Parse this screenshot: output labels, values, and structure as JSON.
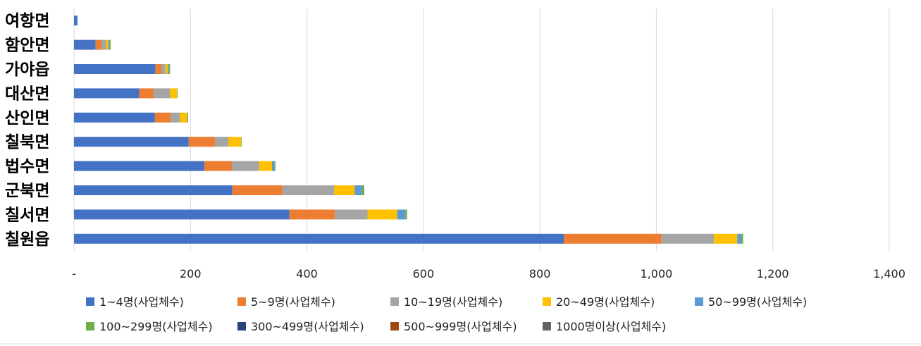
{
  "chart_data": {
    "type": "bar",
    "orientation": "horizontal",
    "stacked": true,
    "grid": true,
    "legend_position": "bottom",
    "categories": [
      "여항면",
      "함안면",
      "가야읍",
      "대산면",
      "산인면",
      "칠북면",
      "법수면",
      "군북면",
      "칠서면",
      "칠원읍"
    ],
    "x_ticks": [
      "-",
      "200",
      "400",
      "600",
      "800",
      "1,000",
      "1,200",
      "1,400"
    ],
    "xlim": [
      0,
      1400
    ],
    "series": [
      {
        "name": "1~4명(사업체수)",
        "color": "#4472C4",
        "values": [
          6,
          37,
          140,
          112,
          139,
          197,
          224,
          272,
          370,
          841
        ]
      },
      {
        "name": "5~9명(사업체수)",
        "color": "#ED7D31",
        "values": [
          0,
          10,
          10,
          25,
          27,
          45,
          47,
          86,
          78,
          168
        ]
      },
      {
        "name": "10~19명(사업체수)",
        "color": "#A5A5A5",
        "values": [
          0,
          8,
          7,
          28,
          16,
          23,
          47,
          89,
          56,
          90
        ]
      },
      {
        "name": "20~49명(사업체수)",
        "color": "#FFC000",
        "values": [
          0,
          4,
          4,
          12,
          12,
          22,
          22,
          35,
          51,
          40
        ]
      },
      {
        "name": "50~99명(사업체수)",
        "color": "#5B9BD5",
        "values": [
          0,
          2,
          2,
          0,
          1,
          0,
          4,
          12,
          14,
          7
        ]
      },
      {
        "name": "100~299명(사업체수)",
        "color": "#70AD47",
        "values": [
          0,
          2,
          2,
          1,
          1,
          1,
          2,
          3,
          3,
          3
        ]
      },
      {
        "name": "300~499명(사업체수)",
        "color": "#264478",
        "values": [
          0,
          0,
          0,
          0,
          0,
          0,
          0,
          1,
          0,
          0
        ]
      },
      {
        "name": "500~999명(사업체수)",
        "color": "#9E480E",
        "values": [
          0,
          0,
          0,
          0,
          0,
          0,
          0,
          0,
          0,
          0
        ]
      },
      {
        "name": "1000명이상(사업체수)",
        "color": "#636363",
        "values": [
          0,
          0,
          0,
          0,
          0,
          0,
          0,
          0,
          0,
          0
        ]
      }
    ]
  }
}
